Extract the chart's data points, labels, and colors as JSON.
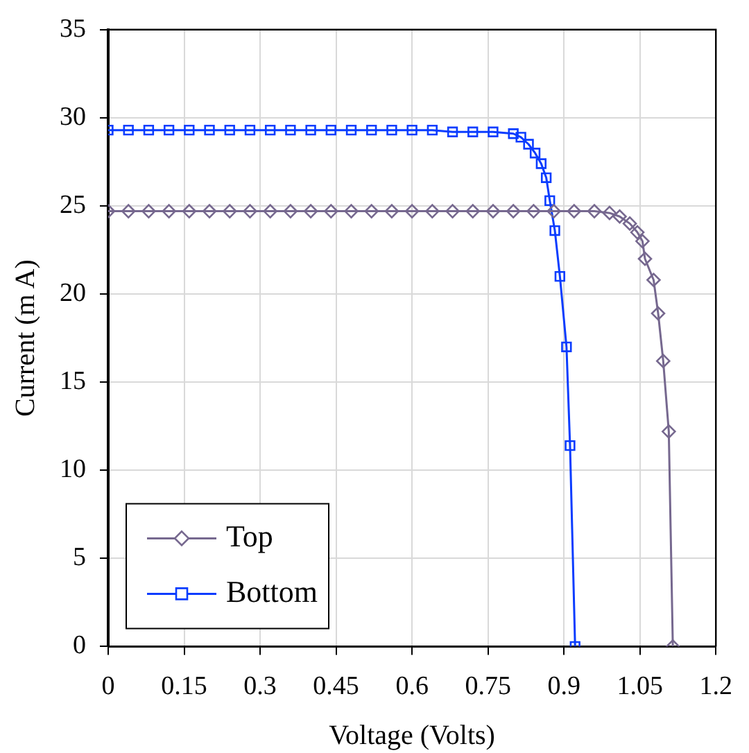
{
  "chart_data": {
    "type": "line",
    "xlabel": "Voltage (Volts)",
    "ylabel": "Current (m A)",
    "xlim": [
      0,
      1.2
    ],
    "xticks": [
      0,
      0.15,
      0.3,
      0.45,
      0.6,
      0.75,
      0.9,
      1.05,
      1.2
    ],
    "ylim": [
      0,
      35
    ],
    "yticks": [
      0,
      5,
      10,
      15,
      20,
      25,
      30,
      35
    ],
    "grid": true,
    "legend": "bottom left",
    "series": [
      {
        "name": "Top",
        "color": "#76688f",
        "marker": "diamond",
        "x": [
          0,
          0.04,
          0.08,
          0.12,
          0.16,
          0.2,
          0.24,
          0.28,
          0.32,
          0.36,
          0.4,
          0.44,
          0.48,
          0.52,
          0.56,
          0.6,
          0.64,
          0.68,
          0.72,
          0.76,
          0.8,
          0.84,
          0.88,
          0.92,
          0.96,
          0.99,
          1.01,
          1.03,
          1.045,
          1.055,
          1.06,
          1.077,
          1.086,
          1.096,
          1.107,
          1.115
        ],
        "values": [
          24.7,
          24.7,
          24.7,
          24.7,
          24.7,
          24.7,
          24.7,
          24.7,
          24.7,
          24.7,
          24.7,
          24.7,
          24.7,
          24.7,
          24.7,
          24.7,
          24.7,
          24.7,
          24.7,
          24.7,
          24.7,
          24.7,
          24.7,
          24.7,
          24.7,
          24.6,
          24.4,
          24.0,
          23.5,
          23.0,
          22.0,
          20.8,
          18.9,
          16.2,
          12.2,
          0
        ]
      },
      {
        "name": "Bottom",
        "color": "#0a3cff",
        "marker": "square",
        "x": [
          0,
          0.04,
          0.08,
          0.12,
          0.16,
          0.2,
          0.24,
          0.28,
          0.32,
          0.36,
          0.4,
          0.44,
          0.48,
          0.52,
          0.56,
          0.6,
          0.64,
          0.68,
          0.72,
          0.76,
          0.8,
          0.815,
          0.83,
          0.843,
          0.855,
          0.865,
          0.872,
          0.882,
          0.892,
          0.905,
          0.912,
          0.922
        ],
        "values": [
          29.3,
          29.3,
          29.3,
          29.3,
          29.3,
          29.3,
          29.3,
          29.3,
          29.3,
          29.3,
          29.3,
          29.3,
          29.3,
          29.3,
          29.3,
          29.3,
          29.3,
          29.2,
          29.2,
          29.2,
          29.1,
          28.9,
          28.5,
          28.0,
          27.4,
          26.6,
          25.3,
          23.6,
          21.0,
          17.0,
          11.4,
          0
        ]
      }
    ]
  }
}
